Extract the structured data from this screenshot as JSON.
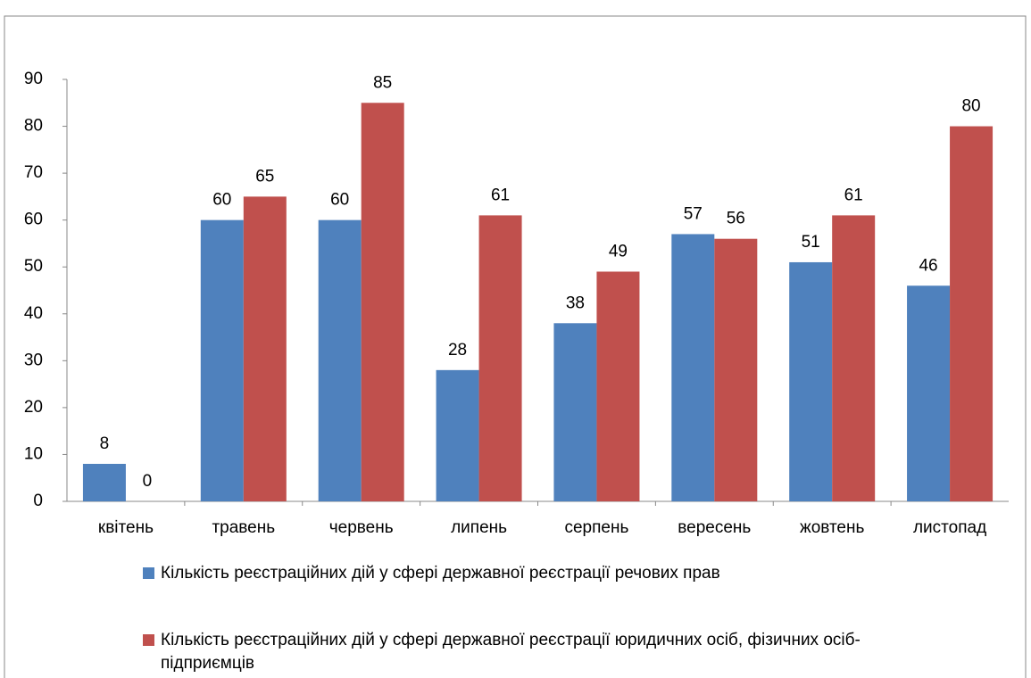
{
  "chart_data": {
    "type": "bar",
    "categories": [
      "квітень",
      "травень",
      "червень",
      "липень",
      "серпень",
      "вересень",
      "жовтень",
      "листопад"
    ],
    "series": [
      {
        "name": "Кількість реєстраційних дій у сфері державної реєстрації речових прав",
        "color": "#4f81bd",
        "values": [
          8,
          60,
          60,
          28,
          38,
          57,
          51,
          46
        ]
      },
      {
        "name": "Кількість реєстраційних дій у сфері державної реєстрації юридичних осіб, фізичних осіб-підприємців",
        "color": "#c0504d",
        "values": [
          0,
          65,
          85,
          61,
          49,
          56,
          61,
          80
        ]
      }
    ],
    "ylim": [
      0,
      90
    ],
    "yticks": [
      0,
      10,
      20,
      30,
      40,
      50,
      60,
      70,
      80,
      90
    ],
    "grid": false
  }
}
